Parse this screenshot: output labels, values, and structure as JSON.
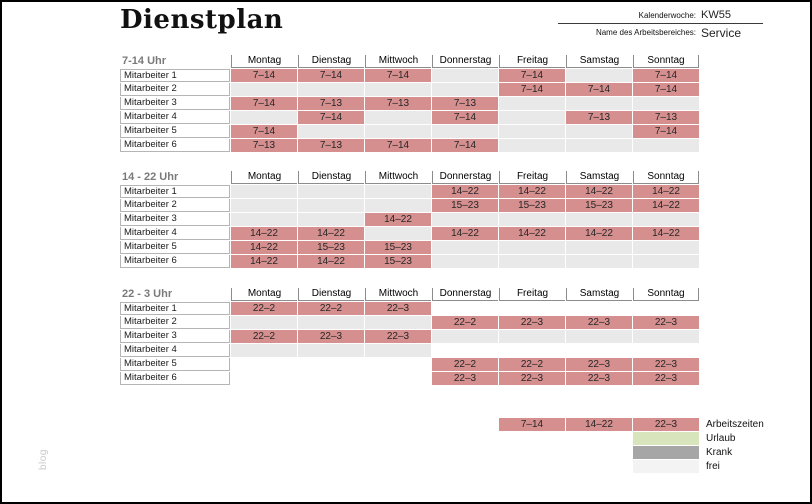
{
  "header": {
    "title": "Dienstplan",
    "kalenderwoche_label": "Kalenderwoche:",
    "kalenderwoche_value": "KW55",
    "arbeitsbereich_label": "Name des Arbeitsbereiches:",
    "arbeitsbereich_value": "Service"
  },
  "watermark": "blog",
  "days": [
    "Montag",
    "Dienstag",
    "Mittwoch",
    "Donnerstag",
    "Freitag",
    "Samstag",
    "Sonntag"
  ],
  "sections": [
    {
      "label": "7-14 Uhr",
      "rows": [
        {
          "name": "Mitarbeiter 1",
          "cells": [
            "7–14",
            "7–14",
            "7–14",
            "",
            "7–14",
            "",
            "7–14"
          ]
        },
        {
          "name": "Mitarbeiter 2",
          "cells": [
            "",
            "",
            "",
            "",
            "7–14",
            "7–14",
            "7–14"
          ]
        },
        {
          "name": "Mitarbeiter 3",
          "cells": [
            "7–14",
            "7–13",
            "7–13",
            "7–13",
            "",
            "",
            ""
          ]
        },
        {
          "name": "Mitarbeiter 4",
          "cells": [
            "",
            "7–14",
            "",
            "7–14",
            "",
            "7–13",
            "7–13"
          ]
        },
        {
          "name": "Mitarbeiter 5",
          "cells": [
            "7–14",
            "",
            "",
            "",
            "",
            "",
            "7–14"
          ]
        },
        {
          "name": "Mitarbeiter 6",
          "cells": [
            "7–13",
            "7–13",
            "7–14",
            "7–14",
            "",
            "",
            ""
          ]
        }
      ]
    },
    {
      "label": "14 - 22 Uhr",
      "rows": [
        {
          "name": "Mitarbeiter 1",
          "cells": [
            "",
            "",
            "",
            "14–22",
            "14–22",
            "14–22",
            "14–22"
          ]
        },
        {
          "name": "Mitarbeiter 2",
          "cells": [
            "",
            "",
            "",
            "15–23",
            "15–23",
            "15–23",
            "14–22"
          ]
        },
        {
          "name": "Mitarbeiter 3",
          "cells": [
            "",
            "",
            "14–22",
            "",
            "",
            "",
            ""
          ]
        },
        {
          "name": "Mitarbeiter 4",
          "cells": [
            "14–22",
            "14–22",
            "",
            "14–22",
            "14–22",
            "14–22",
            "14–22"
          ]
        },
        {
          "name": "Mitarbeiter 5",
          "cells": [
            "14–22",
            "15–23",
            "15–23",
            "",
            "",
            "",
            ""
          ]
        },
        {
          "name": "Mitarbeiter 6",
          "cells": [
            "14–22",
            "14–22",
            "15–23",
            "",
            "",
            "",
            ""
          ]
        }
      ]
    },
    {
      "label": "22 - 3 Uhr",
      "rows": [
        {
          "name": "Mitarbeiter 1",
          "cells": [
            "22–2",
            "22–2",
            "22–3",
            null,
            null,
            null,
            null
          ]
        },
        {
          "name": "Mitarbeiter 2",
          "cells": [
            "",
            "",
            "",
            "22–2",
            "22–3",
            "22–3",
            "22–3"
          ]
        },
        {
          "name": "Mitarbeiter 3",
          "cells": [
            "22–2",
            "22–3",
            "22–3",
            "",
            "",
            "",
            ""
          ]
        },
        {
          "name": "Mitarbeiter 4",
          "cells": [
            "",
            "",
            "",
            null,
            null,
            null,
            null
          ]
        },
        {
          "name": "Mitarbeiter 5",
          "cells": [
            null,
            null,
            null,
            "22–2",
            "22–2",
            "22–3",
            "22–3"
          ]
        },
        {
          "name": "Mitarbeiter 6",
          "cells": [
            null,
            null,
            null,
            "22–3",
            "22–3",
            "22–3",
            "22–3"
          ]
        }
      ]
    }
  ],
  "legend": {
    "work_values": [
      "7–14",
      "14–22",
      "22–3"
    ],
    "work_label": "Arbeitszeiten",
    "items": [
      {
        "label": "Urlaub",
        "type": "urlaub"
      },
      {
        "label": "Krank",
        "type": "krank"
      },
      {
        "label": "frei",
        "type": "frei"
      }
    ]
  },
  "colors": {
    "work": "#d58f8f",
    "empty": "#e9e9e9",
    "urlaub": "#d8e4bc",
    "krank": "#a6a6a6",
    "frei": "#f3f3f3"
  }
}
